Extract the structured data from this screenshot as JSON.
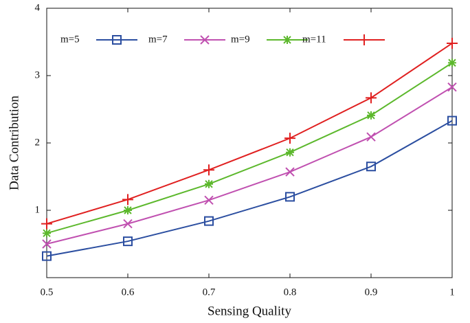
{
  "chart_data": {
    "type": "line",
    "x_label": "Sensing Quality",
    "y_label": "Data Contribution",
    "x": [
      0.5,
      0.6,
      0.7,
      0.8,
      0.9,
      1
    ],
    "xlim": [
      0.5,
      1
    ],
    "xticks": [
      0.5,
      0.6,
      0.7,
      0.8,
      0.9,
      1
    ],
    "ylim": [
      0,
      4
    ],
    "yticks": [
      1,
      2,
      3,
      4
    ],
    "legend": "top-left",
    "series": [
      {
        "name": "m=5",
        "color": "#2b4ea0",
        "marker": "square",
        "values": [
          0.32,
          0.54,
          0.84,
          1.2,
          1.65,
          2.33
        ]
      },
      {
        "name": "m=7",
        "color": "#c050b0",
        "marker": "x",
        "values": [
          0.5,
          0.8,
          1.15,
          1.57,
          2.09,
          2.83
        ]
      },
      {
        "name": "m=9",
        "color": "#5cb82c",
        "marker": "asterisk",
        "values": [
          0.66,
          1.0,
          1.39,
          1.86,
          2.41,
          3.19
        ]
      },
      {
        "name": "m=11",
        "color": "#e02020",
        "marker": "plus",
        "values": [
          0.8,
          1.16,
          1.6,
          2.07,
          2.67,
          3.48
        ]
      }
    ]
  }
}
